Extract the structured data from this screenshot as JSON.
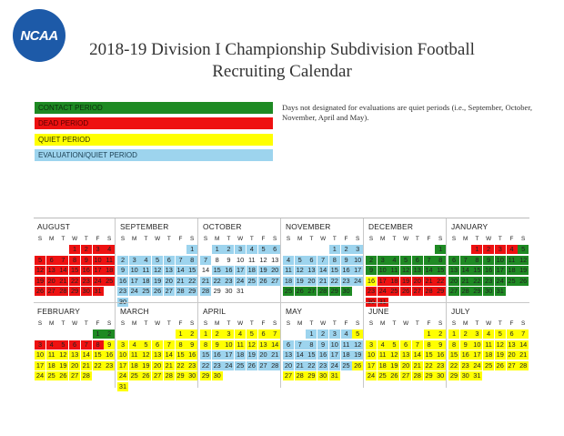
{
  "logo_text": "NCAA",
  "title_line1": "2018-19 Division I Championship Subdivision Football",
  "title_line2": "Recruiting Calendar",
  "legend": [
    {
      "label": "CONTACT PERIOD",
      "color": "#1e8a23",
      "text_color": "#0b2e0c"
    },
    {
      "label": "DEAD PERIOD",
      "color": "#ee1111",
      "text_color": "#5a0000"
    },
    {
      "label": "QUIET PERIOD",
      "color": "#ffff00",
      "text_color": "#333300"
    },
    {
      "label": "EVALUATION/QUIET PERIOD",
      "color": "#9dd4ee",
      "text_color": "#1b3f52"
    }
  ],
  "note": "Days not designated for evaluations are quiet periods (i.e., September, October, November, April and May).",
  "weekday_letters": [
    "S",
    "M",
    "T",
    "W",
    "T",
    "F",
    "S"
  ],
  "colors": {
    "C": "#1e8a23",
    "D": "#ee1111",
    "Q": "#ffff00",
    "E": "#9dd4ee"
  },
  "months": [
    {
      "name": "AUGUST",
      "offset": 3,
      "days": 31,
      "fills": [
        [
          "D",
          1,
          31
        ]
      ]
    },
    {
      "name": "SEPTEMBER",
      "offset": 6,
      "days": 30,
      "fills": [
        [
          "E",
          1,
          1
        ],
        [
          "E",
          2,
          15
        ],
        [
          "E",
          16,
          30
        ]
      ]
    },
    {
      "name": "OCTOBER",
      "offset": 1,
      "days": 31,
      "fills": [
        [
          "E",
          1,
          6
        ],
        [
          "E",
          7,
          7
        ],
        [
          "E",
          15,
          20
        ],
        [
          "E",
          21,
          27
        ],
        [
          "E",
          28,
          28
        ]
      ]
    },
    {
      "name": "NOVEMBER",
      "offset": 4,
      "days": 30,
      "fills": [
        [
          "E",
          1,
          3
        ],
        [
          "E",
          4,
          11
        ],
        [
          "E",
          12,
          17
        ],
        [
          "E",
          18,
          24
        ],
        [
          "C",
          25,
          30
        ]
      ]
    },
    {
      "name": "DECEMBER",
      "offset": 6,
      "days": 31,
      "fills": [
        [
          "C",
          1,
          15
        ],
        [
          "Q",
          16,
          16
        ],
        [
          "D",
          17,
          31
        ]
      ]
    },
    {
      "name": "JANUARY",
      "offset": 2,
      "days": 31,
      "fills": [
        [
          "D",
          1,
          4
        ],
        [
          "C",
          5,
          31
        ]
      ]
    },
    {
      "name": "FEBRUARY",
      "offset": 5,
      "days": 28,
      "fills": [
        [
          "C",
          1,
          2
        ],
        [
          "D",
          3,
          8
        ],
        [
          "Q",
          9,
          28
        ]
      ]
    },
    {
      "name": "MARCH",
      "offset": 5,
      "days": 31,
      "fills": [
        [
          "Q",
          1,
          31
        ]
      ]
    },
    {
      "name": "APRIL",
      "offset": 0,
      "days": 30,
      "fills": [
        [
          "Q",
          1,
          14
        ],
        [
          "E",
          15,
          28
        ],
        [
          "Q",
          29,
          30
        ]
      ]
    },
    {
      "name": "MAY",
      "offset": 2,
      "days": 31,
      "fills": [
        [
          "E",
          1,
          4
        ],
        [
          "Q",
          5,
          5
        ],
        [
          "E",
          6,
          25
        ],
        [
          "Q",
          26,
          31
        ]
      ]
    },
    {
      "name": "JUNE",
      "offset": 5,
      "days": 30,
      "fills": [
        [
          "Q",
          1,
          30
        ]
      ]
    },
    {
      "name": "JULY",
      "offset": 0,
      "days": 31,
      "fills": [
        [
          "Q",
          1,
          31
        ]
      ]
    }
  ]
}
